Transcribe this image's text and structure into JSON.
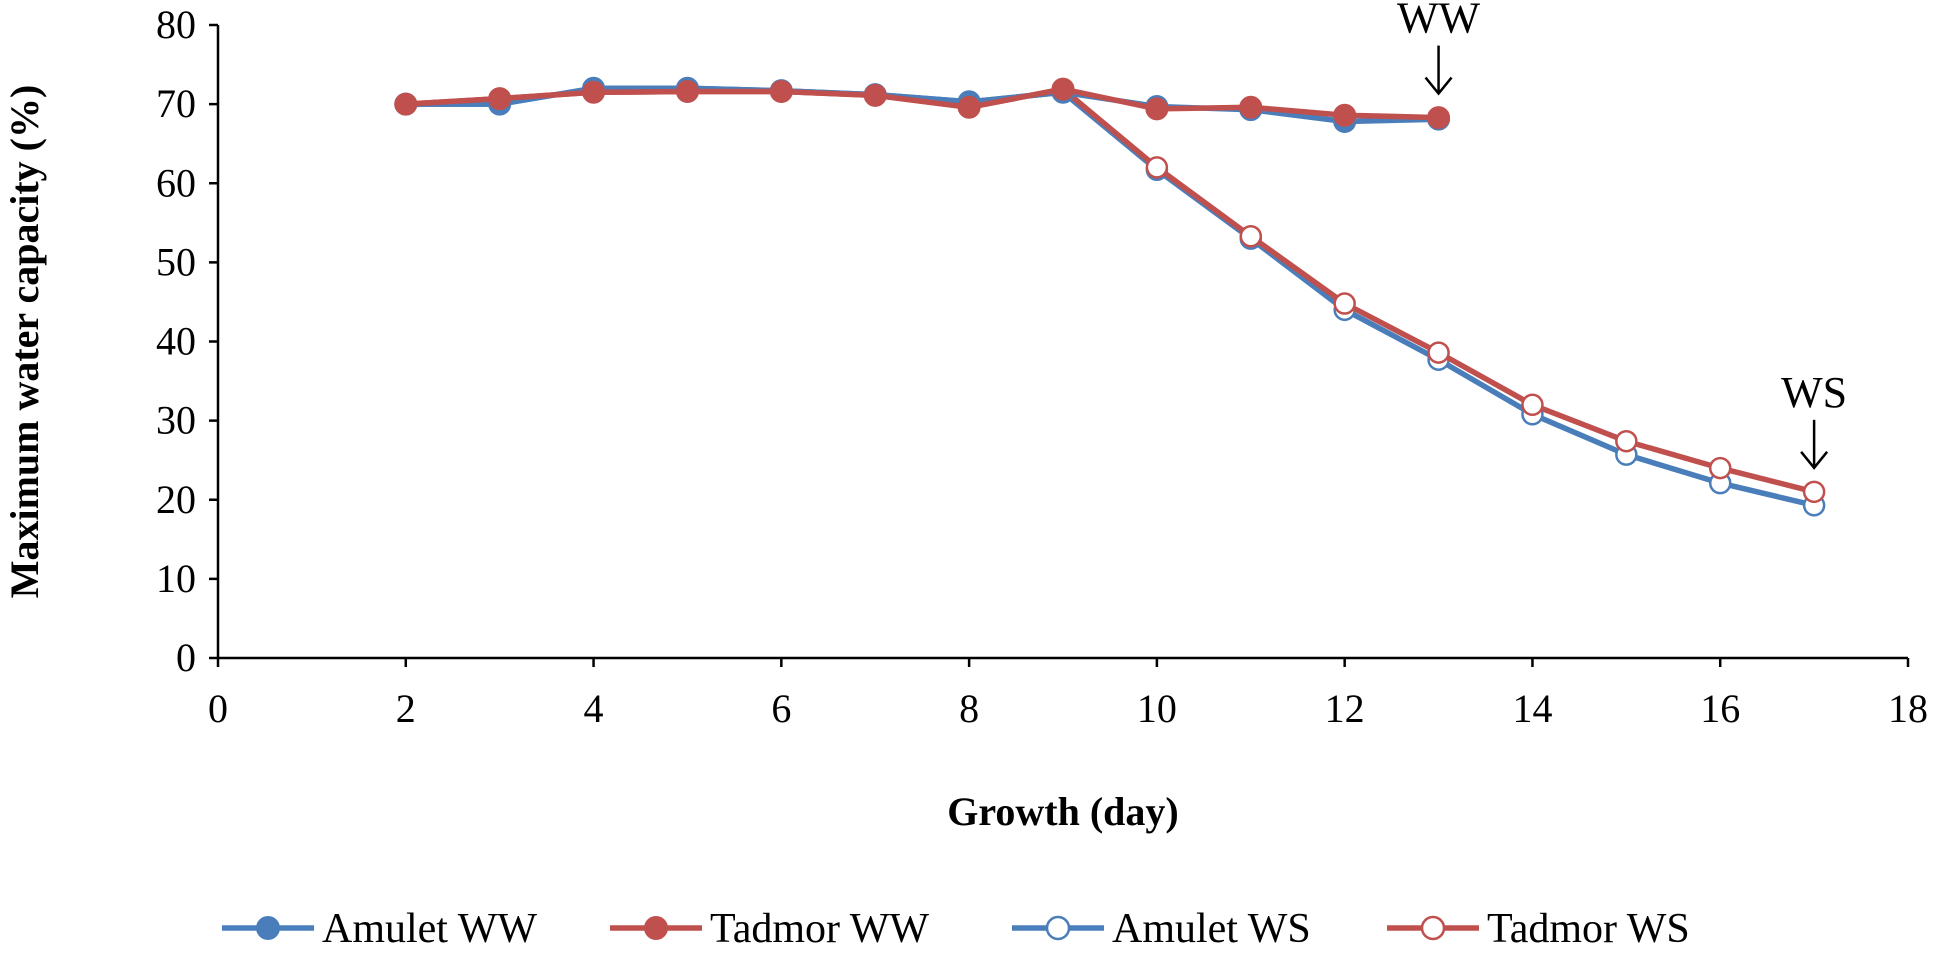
{
  "chart_data": {
    "type": "line",
    "title": "",
    "xlabel": "Growth (day)",
    "ylabel": "Maximum water capacity (%)",
    "xlim": [
      0,
      18
    ],
    "ylim": [
      0,
      80
    ],
    "xticks": [
      0,
      2,
      4,
      6,
      8,
      10,
      12,
      14,
      16,
      18
    ],
    "yticks": [
      0,
      10,
      20,
      30,
      40,
      50,
      60,
      70,
      80
    ],
    "grid": false,
    "legend_position": "bottom",
    "series": [
      {
        "name": "Amulet WS",
        "color": "#4a7ebb",
        "marker": "open-circle",
        "x": [
          2,
          3,
          4,
          5,
          6,
          7,
          8,
          9,
          10,
          11,
          12,
          13,
          14,
          15,
          16,
          17
        ],
        "values": [
          70,
          70,
          72,
          72,
          71.7,
          71.2,
          70.3,
          71.5,
          61.7,
          53,
          44,
          37.7,
          30.8,
          25.7,
          22.1,
          19.3
        ]
      },
      {
        "name": "Tadmor WS",
        "color": "#c0504d",
        "marker": "open-circle",
        "x": [
          2,
          3,
          4,
          5,
          6,
          7,
          8,
          9,
          10,
          11,
          12,
          13,
          14,
          15,
          16,
          17
        ],
        "values": [
          70,
          70.7,
          71.5,
          71.6,
          71.6,
          71.1,
          69.6,
          71.9,
          62,
          53.3,
          44.8,
          38.6,
          32,
          27.4,
          24,
          21
        ]
      },
      {
        "name": "Amulet WW",
        "color": "#4a7ebb",
        "marker": "filled-circle",
        "x": [
          2,
          3,
          4,
          5,
          6,
          7,
          8,
          9,
          10,
          11,
          12,
          13
        ],
        "values": [
          70,
          70,
          72,
          72,
          71.7,
          71.2,
          70.3,
          71.5,
          69.7,
          69.3,
          67.8,
          68.1
        ]
      },
      {
        "name": "Tadmor WW",
        "color": "#c0504d",
        "marker": "filled-circle",
        "x": [
          2,
          3,
          4,
          5,
          6,
          7,
          8,
          9,
          10,
          11,
          12,
          13
        ],
        "values": [
          70,
          70.7,
          71.5,
          71.6,
          71.6,
          71.1,
          69.6,
          71.9,
          69.4,
          69.6,
          68.6,
          68.3
        ]
      }
    ],
    "legend_order": [
      "Amulet WW",
      "Tadmor WW",
      "Amulet WS",
      "Tadmor WS"
    ],
    "annotations": [
      {
        "text": "WW",
        "x": 13,
        "y": 68.3,
        "arrow": "down"
      },
      {
        "text": "WS",
        "x": 17,
        "y": 21,
        "arrow": "down"
      }
    ]
  }
}
